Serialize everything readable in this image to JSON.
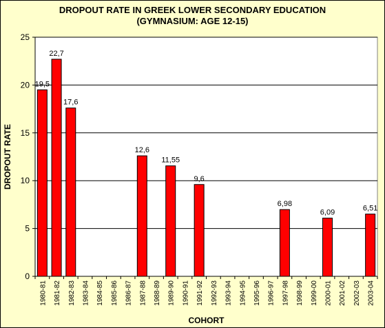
{
  "chart_data": {
    "type": "bar",
    "title_lines": [
      "DROPOUT RATE IN GREEK LOWER SECONDARY EDUCATION",
      "(GYMNASIUM: AGE 12-15)"
    ],
    "xlabel": "COHORT",
    "ylabel": "DROPOUT RATE",
    "categories": [
      "1980-81",
      "1981-82",
      "1982-83",
      "1983-84",
      "1984-85",
      "1985-86",
      "1986-87",
      "1987-88",
      "1988-89",
      "1989-90",
      "1990-91",
      "1991-92",
      "1992-93",
      "1993-94",
      "1994-95",
      "1995-96",
      "1996-97",
      "1997-98",
      "1998-99",
      "1999-00",
      "2000-01",
      "2001-02",
      "2002-03",
      "2003-04"
    ],
    "values": [
      19.5,
      22.7,
      17.6,
      null,
      null,
      null,
      null,
      12.6,
      null,
      11.55,
      null,
      9.6,
      null,
      null,
      null,
      null,
      null,
      6.98,
      null,
      null,
      6.09,
      null,
      null,
      6.51
    ],
    "value_labels": [
      "19,5",
      "22,7",
      "17,6",
      "",
      "",
      "",
      "",
      "12,6",
      "",
      "11,55",
      "",
      "9,6",
      "",
      "",
      "",
      "",
      "",
      "6,98",
      "",
      "",
      "6,09",
      "",
      "",
      "6,51"
    ],
    "ylim": [
      0,
      25
    ],
    "yticks": [
      0,
      5,
      10,
      15,
      20,
      25
    ],
    "grid": true,
    "bar_color": "#ff0000",
    "plot_background": "#ffffff",
    "chart_background": "#ffffcc"
  }
}
